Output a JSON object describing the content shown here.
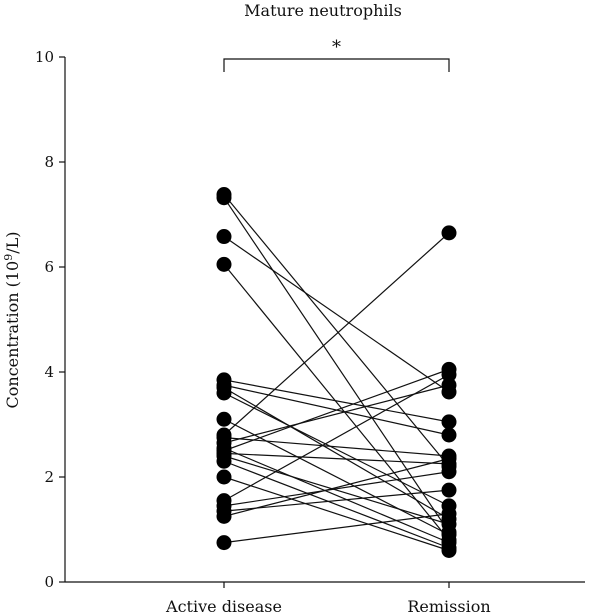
{
  "chart_data": {
    "type": "scatter",
    "title": "Mature neutrophils",
    "ylabel_prefix": "Concentration (10",
    "ylabel_sup": "9",
    "ylabel_suffix": "/L)",
    "ylim": [
      0,
      10
    ],
    "yticks": [
      "0",
      "2",
      "4",
      "6",
      "8",
      "10"
    ],
    "categories": [
      "Active disease",
      "Remission"
    ],
    "significance": "*",
    "pairs": [
      [
        7.38,
        2.2
      ],
      [
        7.32,
        0.95
      ],
      [
        6.58,
        3.62
      ],
      [
        6.05,
        0.8
      ],
      [
        3.85,
        3.05
      ],
      [
        3.75,
        2.8
      ],
      [
        3.7,
        1.2
      ],
      [
        3.6,
        1.45
      ],
      [
        3.1,
        0.9
      ],
      [
        2.8,
        6.65
      ],
      [
        2.75,
        2.4
      ],
      [
        2.65,
        3.75
      ],
      [
        2.55,
        0.75
      ],
      [
        2.5,
        4.05
      ],
      [
        2.45,
        2.25
      ],
      [
        2.4,
        1.1
      ],
      [
        2.3,
        0.65
      ],
      [
        2.0,
        0.6
      ],
      [
        1.55,
        3.95
      ],
      [
        1.45,
        2.1
      ],
      [
        1.35,
        1.75
      ],
      [
        1.25,
        2.35
      ],
      [
        0.75,
        1.3
      ]
    ]
  }
}
